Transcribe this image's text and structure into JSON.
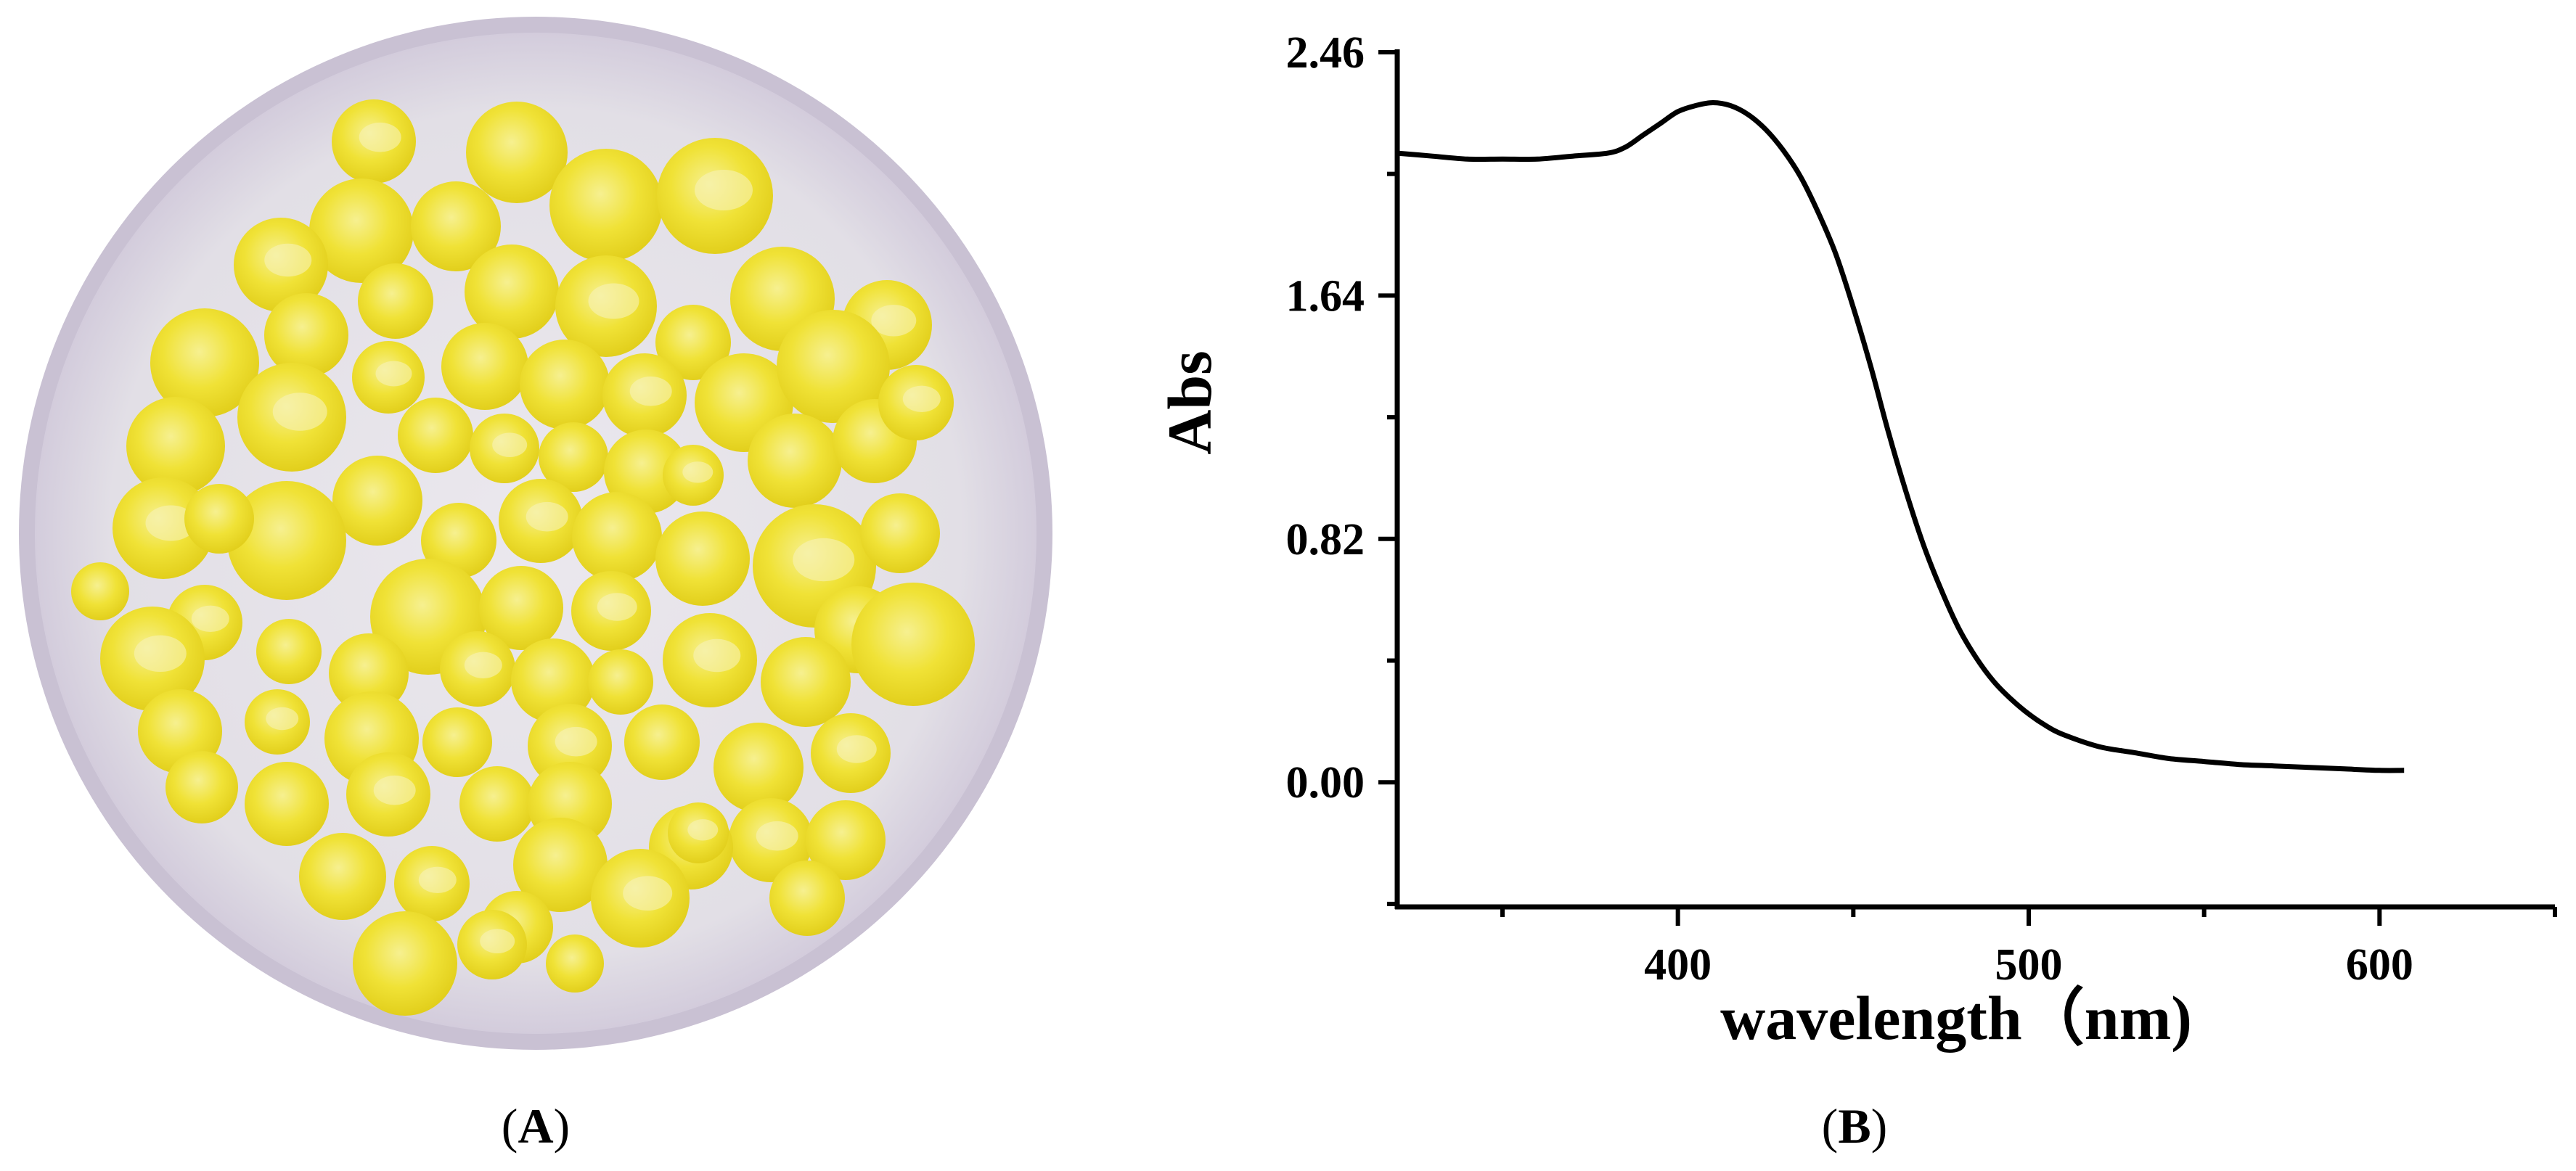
{
  "panels": {
    "a": {
      "label_open": "(",
      "label_letter": "A",
      "label_close": ")"
    },
    "b": {
      "label_open": "(",
      "label_letter": "B",
      "label_close": ")"
    }
  },
  "photo": {
    "plate_color": "#e3e0e7",
    "rim_color": "#cfc8d8",
    "pellet_color": "#f0e030",
    "pellet_highlight": "#f6f2b8"
  },
  "chart_data": {
    "type": "line",
    "title": "",
    "xlabel": "wavelength（nm)",
    "ylabel": "Abs",
    "xlim": [
      320,
      650
    ],
    "ylim": [
      -0.42,
      2.46
    ],
    "x_ticks": [
      400,
      500,
      600
    ],
    "y_ticks": [
      0.0,
      0.82,
      1.64,
      2.46
    ],
    "y_tick_labels": [
      "0.00",
      "0.82",
      "1.64",
      "2.46"
    ],
    "grid": false,
    "legend": "none",
    "line_color": "#000000",
    "series": [
      {
        "x": [
          320,
          330,
          340,
          350,
          360,
          370,
          380,
          385,
          390,
          395,
          400,
          405,
          410,
          415,
          420,
          425,
          430,
          435,
          440,
          445,
          450,
          455,
          460,
          465,
          470,
          475,
          480,
          485,
          490,
          495,
          500,
          505,
          510,
          520,
          530,
          540,
          550,
          560,
          570,
          580,
          590,
          600,
          607
        ],
        "y": [
          2.12,
          2.11,
          2.1,
          2.1,
          2.1,
          2.11,
          2.12,
          2.14,
          2.18,
          2.22,
          2.26,
          2.28,
          2.29,
          2.28,
          2.25,
          2.2,
          2.13,
          2.04,
          1.92,
          1.78,
          1.6,
          1.4,
          1.18,
          0.98,
          0.8,
          0.65,
          0.52,
          0.42,
          0.34,
          0.28,
          0.23,
          0.19,
          0.16,
          0.12,
          0.1,
          0.08,
          0.07,
          0.06,
          0.055,
          0.05,
          0.045,
          0.04,
          0.04
        ]
      }
    ]
  }
}
